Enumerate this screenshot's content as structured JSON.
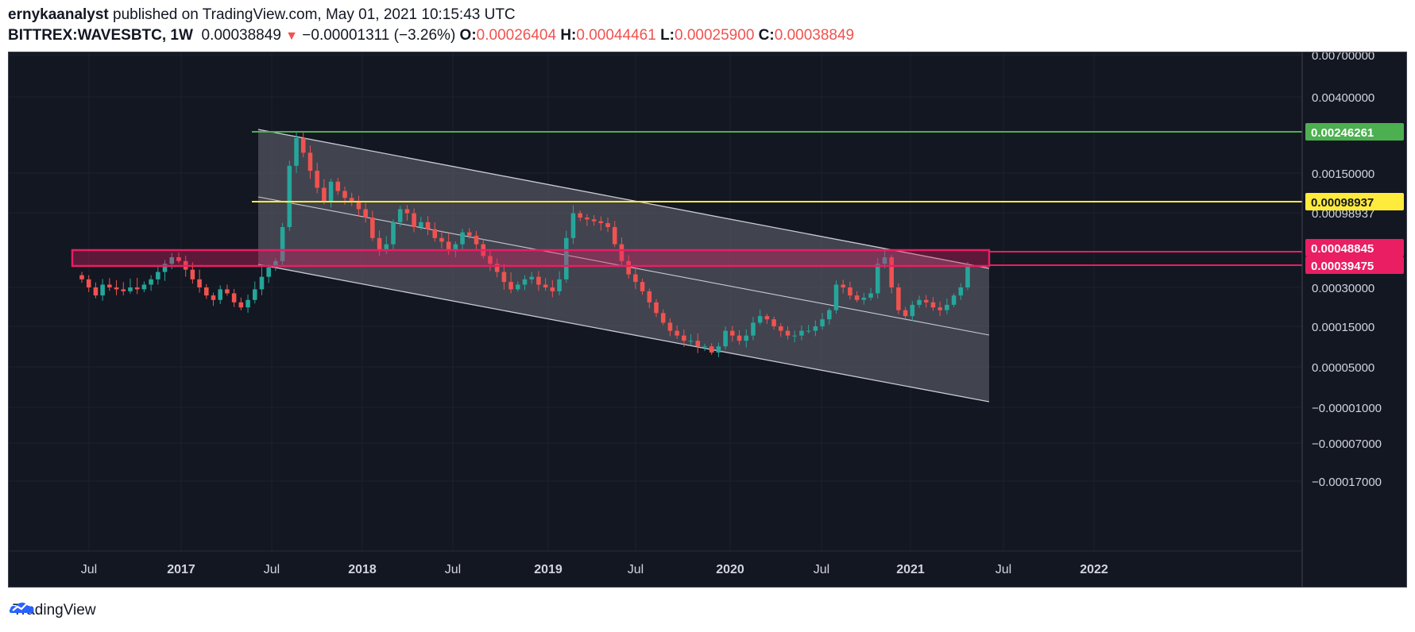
{
  "header": {
    "author": "ernykaanalyst",
    "published_text": "published on TradingView.com, May 01, 2021 10:15:43 UTC",
    "symbol": "BITTREX:WAVESBTC, 1W",
    "last": "0.00038849",
    "change_arrow": "▼",
    "change": "−0.00001311 (−3.26%)",
    "o_label": "O:",
    "o_value": "0.00026404",
    "h_label": "H:",
    "h_value": "0.00044461",
    "l_label": "L:",
    "l_value": "0.00025900",
    "c_label": "C:",
    "c_value": "0.00038849"
  },
  "footer": {
    "brand": "TradingView",
    "logo_icon": "tradingview-logo-icon"
  },
  "chart_data": {
    "type": "candlestick",
    "title": "",
    "xlabel": "",
    "ylabel": "",
    "log_scale": true,
    "grid": true,
    "background": "#131722",
    "up_color": "#26a69a",
    "down_color": "#ef5350",
    "y_ticks": [
      "0.00700000",
      "0.00400000",
      "0.00150000",
      "0.00098937",
      "0.00030000",
      "0.00015000",
      "0.00005000",
      "−0.00001000",
      "−0.00007000",
      "−0.00017000"
    ],
    "x_ticks": [
      {
        "label": "Jul",
        "bold": false
      },
      {
        "label": "2017",
        "bold": true
      },
      {
        "label": "Jul",
        "bold": false
      },
      {
        "label": "2018",
        "bold": true
      },
      {
        "label": "Jul",
        "bold": false
      },
      {
        "label": "2019",
        "bold": true
      },
      {
        "label": "Jul",
        "bold": false
      },
      {
        "label": "2020",
        "bold": true
      },
      {
        "label": "Jul",
        "bold": false
      },
      {
        "label": "2021",
        "bold": true
      },
      {
        "label": "Jul",
        "bold": false
      },
      {
        "label": "2022",
        "bold": true
      }
    ],
    "levels": [
      {
        "label": "0.00246261",
        "color": "#4caf50",
        "text_color": "#ffffff"
      },
      {
        "label": "0.00098937",
        "color": "#ffeb3b",
        "text_color": "#131722"
      },
      {
        "label": "0.00048845",
        "color": "#e91e63",
        "text_color": "#ffffff"
      },
      {
        "label": "0.00039475",
        "color": "#e91e63",
        "text_color": "#ffffff"
      }
    ],
    "channel": {
      "fill": "#5d606b",
      "line_color": "#c9cbd1"
    },
    "candles_close": [
      0.00033,
      0.0003,
      0.00026,
      0.00031,
      0.0003,
      0.00029,
      0.00028,
      0.0003,
      0.00029,
      0.00031,
      0.00033,
      0.00036,
      0.0004,
      0.00045,
      0.00042,
      0.00037,
      0.00033,
      0.0003,
      0.00026,
      0.00024,
      0.00029,
      0.00027,
      0.00023,
      0.00021,
      0.00024,
      0.00029,
      0.00034,
      0.00038,
      0.00042,
      0.0007,
      0.0016,
      0.0023,
      0.0019,
      0.0015,
      0.0012,
      0.001,
      0.0013,
      0.00115,
      0.00105,
      0.001,
      0.0009,
      0.0008,
      0.0006,
      0.0005,
      0.00055,
      0.00075,
      0.0009,
      0.00085,
      0.0007,
      0.00075,
      0.00068,
      0.0006,
      0.00057,
      0.0005,
      0.00055,
      0.00065,
      0.00062,
      0.00055,
      0.00046,
      0.0004,
      0.00036,
      0.00032,
      0.00029,
      0.00031,
      0.00033,
      0.00034,
      0.00031,
      0.0003,
      0.00028,
      0.00033,
      0.0006,
      0.00085,
      0.0008,
      0.00078,
      0.00076,
      0.00074,
      0.0007,
      0.00055,
      0.00042,
      0.00035,
      0.00032,
      0.00028,
      0.00023,
      0.00019,
      0.00016,
      0.00014,
      0.00013,
      0.00012,
      0.00012,
      0.00011,
      0.00011,
      0.0001,
      0.00011,
      0.00014,
      0.00013,
      0.00012,
      0.00013,
      0.00016,
      0.00018,
      0.00017,
      0.00015,
      0.00014,
      0.00013,
      0.00013,
      0.00014,
      0.00014,
      0.00015,
      0.00017,
      0.0002,
      0.00031,
      0.0003,
      0.00026,
      0.00024,
      0.00025,
      0.00027,
      0.0004,
      0.00045,
      0.0003,
      0.0002,
      0.00018,
      0.00022,
      0.00024,
      0.00023,
      0.00021,
      0.0002,
      0.00022,
      0.00026,
      0.0003,
      0.00039
    ]
  }
}
